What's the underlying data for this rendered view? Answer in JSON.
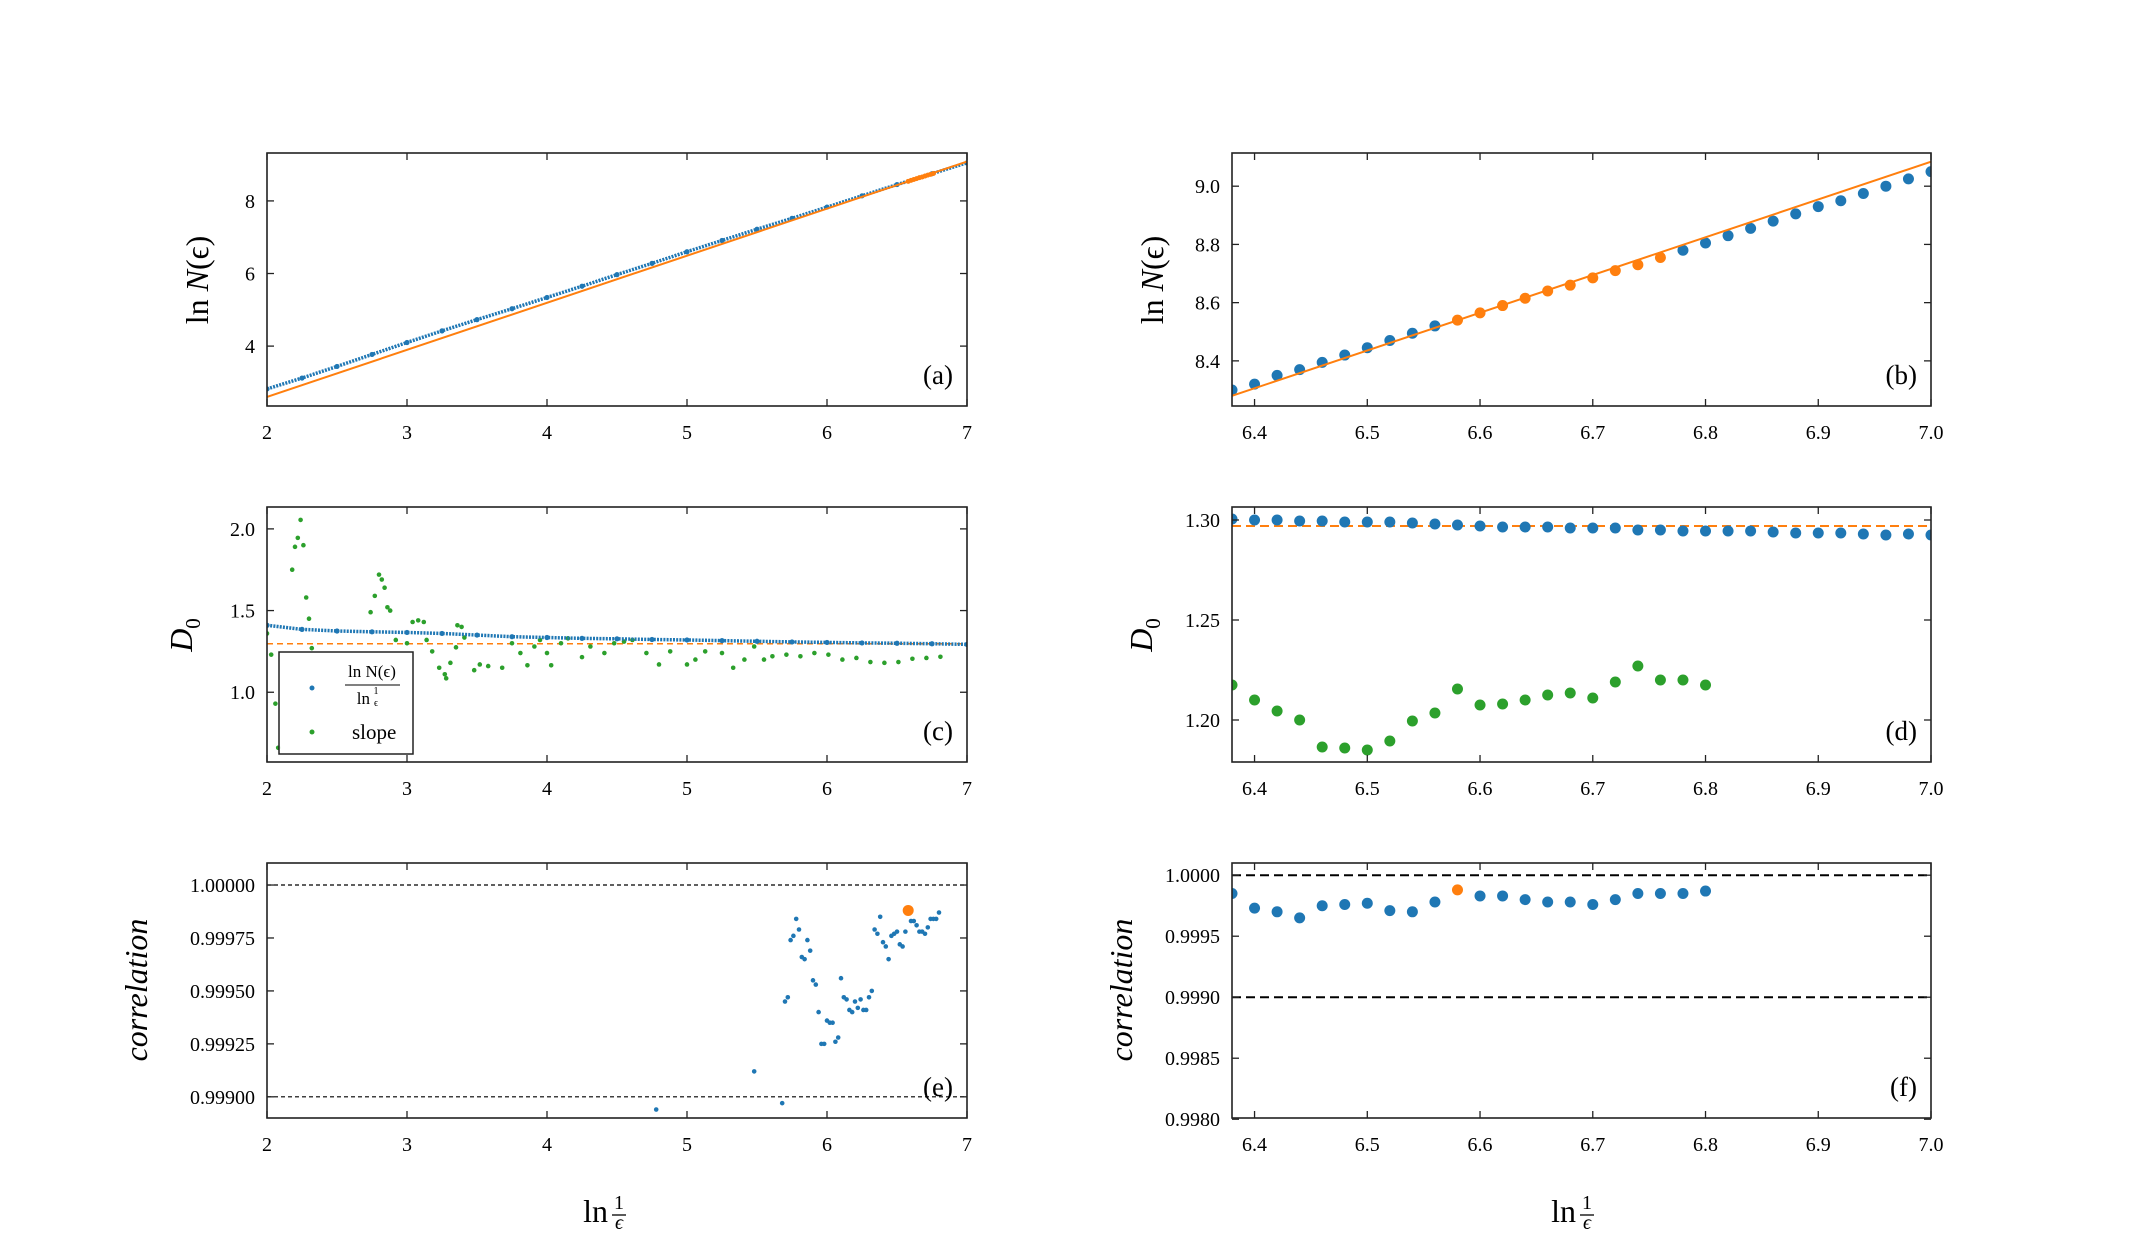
{
  "colors": {
    "blue": "#1f77b4",
    "orange": "#ff7f0e",
    "green": "#2ca02c",
    "black": "#000000"
  },
  "labels": {
    "ln_n": {
      "prefix": "ln ",
      "var": "N",
      "arg": "(ϵ)"
    },
    "d0": {
      "var": "D",
      "sub": "0"
    },
    "correlation": "correlation",
    "xlabel": {
      "prefix": "ln",
      "num": "1",
      "den": "ϵ"
    },
    "legend": {
      "ratio_num": "ln N(ϵ)",
      "ratio_den_prefix": "ln",
      "ratio_den_num": "1",
      "ratio_den_den": "ϵ",
      "slope": "slope"
    }
  },
  "chart_data": [
    {
      "id": "a",
      "type": "scatter",
      "panel_label": "(a)",
      "xlim": [
        2,
        7
      ],
      "ylim": [
        2.35,
        9.32
      ],
      "xticks": [
        2,
        3,
        4,
        5,
        6,
        7
      ],
      "xtick_labels": [
        "2",
        "3",
        "4",
        "5",
        "6",
        "7"
      ],
      "yticks": [
        4,
        6,
        8
      ],
      "ytick_labels": [
        "4",
        "6",
        "8"
      ],
      "series": [
        {
          "kind": "dense",
          "color": "blue",
          "x": [
            2,
            2.25,
            2.5,
            2.75,
            3,
            3.25,
            3.5,
            3.75,
            4,
            4.25,
            4.5,
            4.75,
            5,
            5.25,
            5.5,
            5.75,
            6,
            6.25,
            6.5,
            6.75,
            7
          ],
          "y": [
            2.82,
            3.12,
            3.44,
            3.77,
            4.1,
            4.42,
            4.73,
            5.03,
            5.34,
            5.65,
            5.97,
            6.28,
            6.6,
            6.91,
            7.22,
            7.52,
            7.83,
            8.14,
            8.45,
            8.75,
            9.05
          ]
        },
        {
          "kind": "line",
          "color": "orange",
          "x": [
            2,
            7
          ],
          "y": [
            2.6,
            9.084
          ]
        },
        {
          "kind": "points",
          "color": "orange",
          "r": 2.5,
          "x": [
            6.58,
            6.6,
            6.62,
            6.64,
            6.66,
            6.68,
            6.7,
            6.72,
            6.74,
            6.76
          ],
          "y": [
            8.54,
            8.565,
            8.59,
            8.615,
            8.64,
            8.66,
            8.685,
            8.71,
            8.73,
            8.755
          ]
        }
      ]
    },
    {
      "id": "b",
      "type": "scatter",
      "panel_label": "(b)",
      "xlim": [
        6.38,
        7.0
      ],
      "ylim": [
        8.245,
        9.114
      ],
      "xticks": [
        6.4,
        6.5,
        6.6,
        6.7,
        6.8,
        6.9,
        7.0
      ],
      "xtick_labels": [
        "6.4",
        "6.5",
        "6.6",
        "6.7",
        "6.8",
        "6.9",
        "7.0"
      ],
      "yticks": [
        8.4,
        8.6,
        8.8,
        9.0
      ],
      "ytick_labels": [
        "8.4",
        "8.6",
        "8.8",
        "9.0"
      ],
      "series": [
        {
          "kind": "points",
          "color": "blue",
          "r": 5.5,
          "x": [
            6.38,
            6.4,
            6.42,
            6.44,
            6.46,
            6.48,
            6.5,
            6.52,
            6.54,
            6.56,
            6.78,
            6.8,
            6.82,
            6.84,
            6.86,
            6.88,
            6.9,
            6.92,
            6.94,
            6.96,
            6.98,
            7.0
          ],
          "y": [
            8.3,
            8.32,
            8.35,
            8.37,
            8.395,
            8.42,
            8.445,
            8.47,
            8.495,
            8.52,
            8.78,
            8.805,
            8.83,
            8.855,
            8.88,
            8.905,
            8.93,
            8.95,
            8.975,
            9.0,
            9.025,
            9.05
          ]
        },
        {
          "kind": "line",
          "color": "orange",
          "x": [
            6.38,
            7.0
          ],
          "y": [
            8.28,
            9.084
          ]
        },
        {
          "kind": "points",
          "color": "orange",
          "r": 5.5,
          "x": [
            6.58,
            6.6,
            6.62,
            6.64,
            6.66,
            6.68,
            6.7,
            6.72,
            6.74,
            6.76
          ],
          "y": [
            8.54,
            8.565,
            8.59,
            8.615,
            8.64,
            8.66,
            8.685,
            8.71,
            8.73,
            8.755
          ]
        }
      ]
    },
    {
      "id": "c",
      "type": "scatter",
      "panel_label": "(c)",
      "xlim": [
        2,
        7
      ],
      "ylim": [
        0.573,
        2.134
      ],
      "xticks": [
        2,
        3,
        4,
        5,
        6,
        7
      ],
      "xtick_labels": [
        "2",
        "3",
        "4",
        "5",
        "6",
        "7"
      ],
      "yticks": [
        1.0,
        1.5,
        2.0
      ],
      "ytick_labels": [
        "1.0",
        "1.5",
        "2.0"
      ],
      "hlines": [
        {
          "y": 1.297,
          "color": "orange",
          "dash": "6,4",
          "width": 1.5
        }
      ],
      "series": [
        {
          "kind": "points",
          "color": "green",
          "r": 2.3,
          "name": "slope",
          "x": [
            2.0,
            2.03,
            2.06,
            2.08,
            2.18,
            2.2,
            2.22,
            2.24,
            2.26,
            2.28,
            2.3,
            2.32,
            2.74,
            2.77,
            2.8,
            2.82,
            2.84,
            2.86,
            2.88,
            2.92,
            3.0,
            3.04,
            3.08,
            3.12,
            3.14,
            3.18,
            3.23,
            3.27,
            3.28,
            3.31,
            3.35,
            3.36,
            3.39,
            3.41,
            3.48,
            3.52,
            3.58,
            3.68,
            3.75,
            3.81,
            3.86,
            3.91,
            3.95,
            4.0,
            4.03,
            4.1,
            4.15,
            4.25,
            4.31,
            4.41,
            4.48,
            4.55,
            4.61,
            4.71,
            4.8,
            4.88,
            5.0,
            5.06,
            5.13,
            5.25,
            5.33,
            5.41,
            5.48,
            5.55,
            5.61,
            5.71,
            5.81,
            5.91,
            6.01,
            6.11,
            6.21,
            6.31,
            6.41,
            6.51,
            6.61,
            6.71,
            6.81
          ],
          "y": [
            1.36,
            1.23,
            0.93,
            0.66,
            1.75,
            1.89,
            1.945,
            2.055,
            1.9,
            1.58,
            1.45,
            1.27,
            1.49,
            1.59,
            1.72,
            1.69,
            1.64,
            1.52,
            1.5,
            1.32,
            1.3,
            1.43,
            1.44,
            1.43,
            1.32,
            1.25,
            1.15,
            1.11,
            1.085,
            1.18,
            1.275,
            1.41,
            1.4,
            1.335,
            1.135,
            1.17,
            1.16,
            1.15,
            1.3,
            1.24,
            1.165,
            1.28,
            1.32,
            1.24,
            1.165,
            1.3,
            1.33,
            1.215,
            1.28,
            1.24,
            1.3,
            1.31,
            1.32,
            1.24,
            1.17,
            1.25,
            1.17,
            1.2,
            1.25,
            1.24,
            1.15,
            1.2,
            1.28,
            1.2,
            1.22,
            1.23,
            1.22,
            1.24,
            1.23,
            1.2,
            1.21,
            1.185,
            1.18,
            1.185,
            1.205,
            1.21,
            1.217
          ]
        },
        {
          "kind": "dense",
          "color": "blue",
          "name": "ln N(ϵ) / ln 1/ϵ",
          "x": [
            2,
            2.25,
            2.5,
            2.75,
            3,
            3.25,
            3.5,
            3.75,
            4,
            4.25,
            4.5,
            4.75,
            5,
            5.25,
            5.5,
            5.75,
            6,
            6.25,
            6.5,
            6.75,
            7
          ],
          "y": [
            1.41,
            1.385,
            1.375,
            1.37,
            1.366,
            1.36,
            1.35,
            1.34,
            1.335,
            1.33,
            1.327,
            1.323,
            1.32,
            1.316,
            1.312,
            1.308,
            1.305,
            1.302,
            1.3,
            1.297,
            1.293
          ]
        }
      ],
      "legend": "bottom-left"
    },
    {
      "id": "d",
      "type": "scatter",
      "panel_label": "(d)",
      "xlim": [
        6.38,
        7.0
      ],
      "ylim": [
        1.179,
        1.3065
      ],
      "xticks": [
        6.4,
        6.5,
        6.6,
        6.7,
        6.8,
        6.9,
        7.0
      ],
      "xtick_labels": [
        "6.4",
        "6.5",
        "6.6",
        "6.7",
        "6.8",
        "6.9",
        "7.0"
      ],
      "yticks": [
        1.2,
        1.25,
        1.3
      ],
      "ytick_labels": [
        "1.20",
        "1.25",
        "1.30"
      ],
      "hlines": [
        {
          "y": 1.297,
          "color": "orange",
          "dash": "9,5",
          "width": 2
        }
      ],
      "series": [
        {
          "kind": "points",
          "color": "blue",
          "r": 5.5,
          "x": [
            6.38,
            6.4,
            6.42,
            6.44,
            6.46,
            6.48,
            6.5,
            6.52,
            6.54,
            6.56,
            6.58,
            6.6,
            6.62,
            6.64,
            6.66,
            6.68,
            6.7,
            6.72,
            6.74,
            6.76,
            6.78,
            6.8,
            6.82,
            6.84,
            6.86,
            6.88,
            6.9,
            6.92,
            6.94,
            6.96,
            6.98,
            7.0
          ],
          "y": [
            1.3005,
            1.3,
            1.3,
            1.2995,
            1.2995,
            1.299,
            1.299,
            1.299,
            1.2985,
            1.298,
            1.2975,
            1.297,
            1.2965,
            1.2965,
            1.2965,
            1.296,
            1.296,
            1.296,
            1.295,
            1.295,
            1.2945,
            1.2945,
            1.2945,
            1.2945,
            1.294,
            1.2935,
            1.2935,
            1.2935,
            1.293,
            1.2925,
            1.293,
            1.2925
          ]
        },
        {
          "kind": "points",
          "color": "green",
          "r": 5.5,
          "x": [
            6.38,
            6.4,
            6.42,
            6.44,
            6.46,
            6.48,
            6.5,
            6.52,
            6.54,
            6.56,
            6.58,
            6.6,
            6.62,
            6.64,
            6.66,
            6.68,
            6.7,
            6.72,
            6.74,
            6.76,
            6.78,
            6.8
          ],
          "y": [
            1.2175,
            1.21,
            1.2045,
            1.2,
            1.1865,
            1.186,
            1.185,
            1.1895,
            1.1995,
            1.2035,
            1.2155,
            1.2075,
            1.208,
            1.21,
            1.2125,
            1.2135,
            1.211,
            1.219,
            1.227,
            1.22,
            1.22,
            1.2175
          ]
        }
      ]
    },
    {
      "id": "e",
      "type": "scatter",
      "panel_label": "(e)",
      "xlim": [
        2,
        7
      ],
      "ylim": [
        0.9989,
        1.000104
      ],
      "xticks": [
        2,
        3,
        4,
        5,
        6,
        7
      ],
      "xtick_labels": [
        "2",
        "3",
        "4",
        "5",
        "6",
        "7"
      ],
      "yticks": [
        0.999,
        0.99925,
        0.9995,
        0.99975,
        1.0
      ],
      "ytick_labels": [
        "0.99900",
        "0.99925",
        "0.99950",
        "0.99975",
        "1.00000"
      ],
      "hlines": [
        {
          "y": 1.0,
          "color": "black",
          "dash": "4,3",
          "width": 1.2
        },
        {
          "y": 0.999,
          "color": "black",
          "dash": "4,3",
          "width": 1.2
        }
      ],
      "series": [
        {
          "kind": "points",
          "color": "blue",
          "r": 2.3,
          "x": [
            4.78,
            5.48,
            5.68,
            5.7,
            5.72,
            5.74,
            5.76,
            5.78,
            5.8,
            5.82,
            5.84,
            5.86,
            5.88,
            5.9,
            5.92,
            5.94,
            5.96,
            5.98,
            6.0,
            6.02,
            6.04,
            6.06,
            6.08,
            6.1,
            6.12,
            6.14,
            6.16,
            6.18,
            6.2,
            6.22,
            6.24,
            6.26,
            6.28,
            6.3,
            6.32,
            6.34,
            6.36,
            6.38,
            6.4,
            6.42,
            6.44,
            6.46,
            6.48,
            6.5,
            6.52,
            6.54,
            6.56,
            6.6,
            6.62,
            6.64,
            6.66,
            6.68,
            6.7,
            6.72,
            6.74,
            6.76,
            6.78,
            6.8
          ],
          "y": [
            0.99894,
            0.99912,
            0.99897,
            0.99945,
            0.99947,
            0.99974,
            0.99976,
            0.99984,
            0.99979,
            0.99966,
            0.99965,
            0.99974,
            0.99969,
            0.99955,
            0.99953,
            0.9994,
            0.99925,
            0.99925,
            0.99936,
            0.99935,
            0.99935,
            0.99926,
            0.99928,
            0.99956,
            0.99947,
            0.99946,
            0.99941,
            0.9994,
            0.99945,
            0.99942,
            0.99946,
            0.99941,
            0.99941,
            0.99947,
            0.9995,
            0.99979,
            0.99977,
            0.99985,
            0.99973,
            0.99971,
            0.99965,
            0.99976,
            0.99977,
            0.99978,
            0.99972,
            0.99971,
            0.99978,
            0.99983,
            0.99983,
            0.99981,
            0.99978,
            0.99978,
            0.99977,
            0.9998,
            0.99984,
            0.99984,
            0.99984,
            0.99987
          ]
        },
        {
          "kind": "points",
          "color": "orange",
          "r": 5.5,
          "x": [
            6.58
          ],
          "y": [
            0.99988
          ]
        }
      ]
    },
    {
      "id": "f",
      "type": "scatter",
      "panel_label": "(f)",
      "xlim": [
        6.38,
        7.0
      ],
      "ylim": [
        0.99801,
        1.0001
      ],
      "xticks": [
        6.4,
        6.5,
        6.6,
        6.7,
        6.8,
        6.9,
        7.0
      ],
      "xtick_labels": [
        "6.4",
        "6.5",
        "6.6",
        "6.7",
        "6.8",
        "6.9",
        "7.0"
      ],
      "yticks": [
        0.998,
        0.9985,
        0.999,
        0.9995,
        1.0
      ],
      "ytick_labels": [
        "0.9980",
        "0.9985",
        "0.9990",
        "0.9995",
        "1.0000"
      ],
      "hlines": [
        {
          "y": 1.0,
          "color": "black",
          "dash": "9,5",
          "width": 2
        },
        {
          "y": 0.999,
          "color": "black",
          "dash": "9,5",
          "width": 2
        }
      ],
      "series": [
        {
          "kind": "points",
          "color": "blue",
          "r": 5.5,
          "x": [
            6.38,
            6.4,
            6.42,
            6.44,
            6.46,
            6.48,
            6.5,
            6.52,
            6.54,
            6.56,
            6.6,
            6.62,
            6.64,
            6.66,
            6.68,
            6.7,
            6.72,
            6.74,
            6.76,
            6.78,
            6.8
          ],
          "y": [
            0.99985,
            0.99973,
            0.9997,
            0.99965,
            0.99975,
            0.99976,
            0.99977,
            0.99971,
            0.9997,
            0.99978,
            0.99983,
            0.99983,
            0.9998,
            0.99978,
            0.99978,
            0.99976,
            0.9998,
            0.99985,
            0.99985,
            0.99985,
            0.99987
          ]
        },
        {
          "kind": "points",
          "color": "orange",
          "r": 5.5,
          "x": [
            6.58
          ],
          "y": [
            0.99988
          ]
        }
      ]
    }
  ]
}
